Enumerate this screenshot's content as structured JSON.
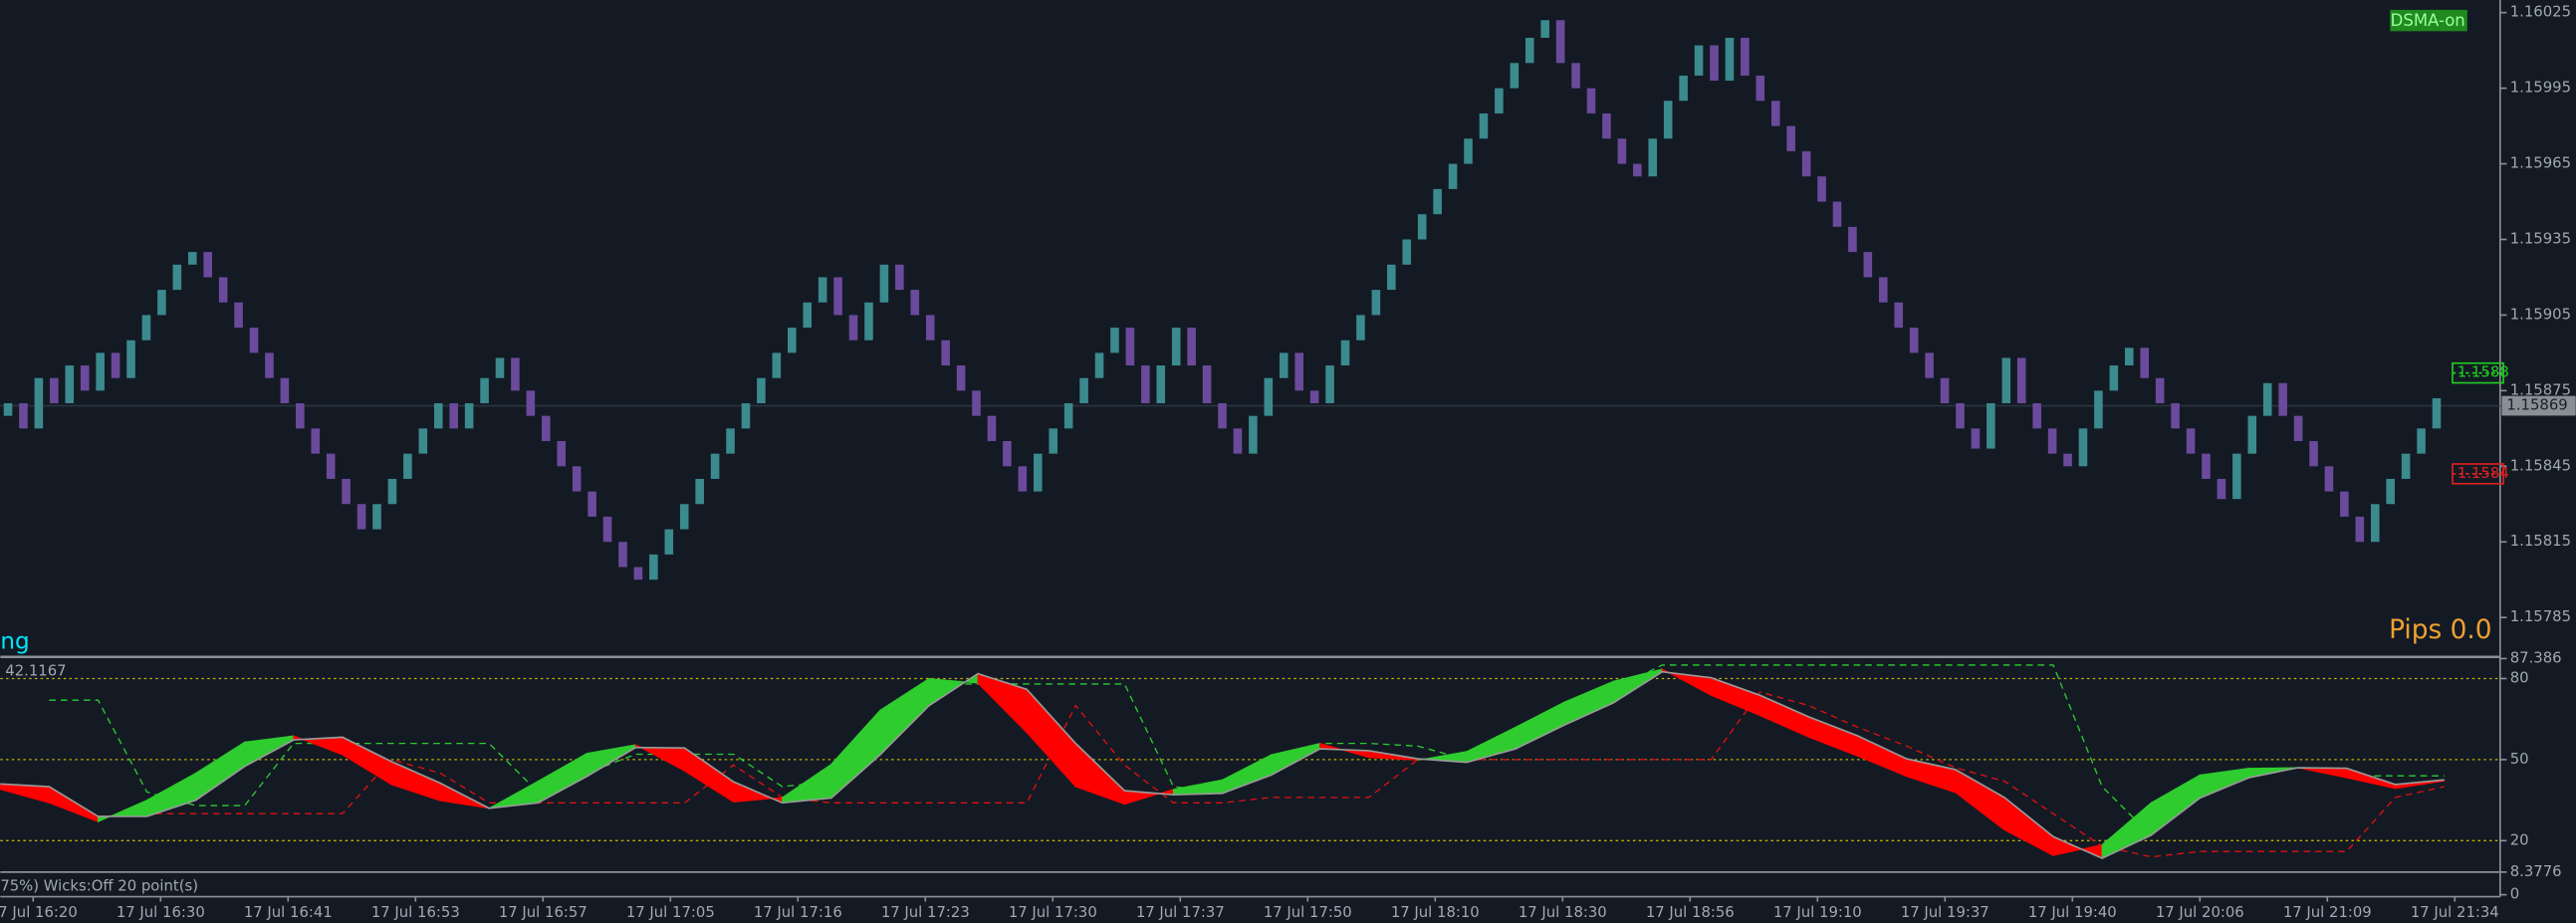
{
  "chart_data": [
    {
      "type": "renko",
      "title": "ng",
      "badge": "DSMA-on",
      "pips": "Pips 0.0",
      "up_color": "#3b8a8e",
      "down_color": "#6b4a9c",
      "values": [
        1.15865,
        1.1587,
        1.1586,
        1.1588,
        1.1587,
        1.15885,
        1.15875,
        1.1589,
        1.1588,
        1.15895,
        1.15905,
        1.15915,
        1.15925,
        1.1593,
        1.1592,
        1.1591,
        1.159,
        1.1589,
        1.1588,
        1.1587,
        1.1586,
        1.1585,
        1.1584,
        1.1583,
        1.1582,
        1.1583,
        1.1584,
        1.1585,
        1.1586,
        1.1587,
        1.1586,
        1.1587,
        1.1588,
        1.15888,
        1.15875,
        1.15865,
        1.15855,
        1.15845,
        1.15835,
        1.15825,
        1.15815,
        1.15805,
        1.158,
        1.1581,
        1.1582,
        1.1583,
        1.1584,
        1.1585,
        1.1586,
        1.1587,
        1.1588,
        1.1589,
        1.159,
        1.1591,
        1.1592,
        1.15905,
        1.15895,
        1.1591,
        1.15925,
        1.15915,
        1.15905,
        1.15895,
        1.15885,
        1.15875,
        1.15865,
        1.15855,
        1.15845,
        1.15835,
        1.1585,
        1.1586,
        1.1587,
        1.1588,
        1.1589,
        1.159,
        1.15885,
        1.1587,
        1.15885,
        1.159,
        1.15885,
        1.1587,
        1.1586,
        1.1585,
        1.15865,
        1.1588,
        1.1589,
        1.15875,
        1.1587,
        1.15885,
        1.15895,
        1.15905,
        1.15915,
        1.15925,
        1.15935,
        1.15945,
        1.15955,
        1.15965,
        1.15975,
        1.15985,
        1.15995,
        1.16005,
        1.16015,
        1.16022,
        1.16005,
        1.15995,
        1.15985,
        1.15975,
        1.15965,
        1.1596,
        1.15975,
        1.1599,
        1.16,
        1.16012,
        1.15998,
        1.16015,
        1.16,
        1.1599,
        1.1598,
        1.1597,
        1.1596,
        1.1595,
        1.1594,
        1.1593,
        1.1592,
        1.1591,
        1.159,
        1.1589,
        1.1588,
        1.1587,
        1.1586,
        1.15852,
        1.1587,
        1.15888,
        1.1587,
        1.1586,
        1.1585,
        1.15845,
        1.1586,
        1.15875,
        1.15885,
        1.15892,
        1.1588,
        1.1587,
        1.1586,
        1.1585,
        1.1584,
        1.15832,
        1.1585,
        1.15865,
        1.15878,
        1.15865,
        1.15855,
        1.15845,
        1.15835,
        1.15825,
        1.15815,
        1.1583,
        1.1584,
        1.1585,
        1.1586,
        1.15872
      ],
      "ylim": [
        1.1577,
        1.1603
      ],
      "yticks": [
        1.15785,
        1.15815,
        1.15845,
        1.15875,
        1.15905,
        1.15935,
        1.15965,
        1.15995,
        1.16025
      ],
      "current_price": 1.15869,
      "price_markers": [
        {
          "value": 1.15882,
          "label": "1.1588",
          "color": "#22cc22"
        },
        {
          "value": 1.15842,
          "label": "1.1584",
          "color": "#e02020"
        }
      ],
      "time_labels": [
        "17 Jul 16:20",
        "17 Jul 16:30",
        "17 Jul 16:41",
        "17 Jul 16:53",
        "17 Jul 16:57",
        "17 Jul 17:05",
        "17 Jul 17:16",
        "17 Jul 17:23",
        "17 Jul 17:30",
        "17 Jul 17:37",
        "17 Jul 17:50",
        "17 Jul 18:10",
        "17 Jul 18:30",
        "17 Jul 18:56",
        "17 Jul 19:10",
        "17 Jul 19:37",
        "17 Jul 19:40",
        "17 Jul 20:06",
        "17 Jul 21:09",
        "17 Jul 21:34"
      ]
    },
    {
      "type": "ribbon",
      "current_label": "42.1167",
      "status": "75%) Wicks:Off 20 point(s)",
      "down_color": "#ff0000",
      "level_color": "#c8b400",
      "series": [
        {
          "color": "#2ecc2e",
          "values": [
            39,
            34,
            27,
            35,
            45,
            56.5,
            58.8,
            51.8,
            40.8,
            34.8,
            32,
            42,
            52.3,
            55.5,
            45.8,
            34.3,
            36,
            48.3,
            68.3,
            80,
            78.3,
            60,
            40,
            33.5,
            39,
            42.5,
            51.8,
            56,
            50.8,
            49.8,
            53,
            62,
            71.3,
            79,
            83.5,
            73.8,
            66.3,
            58.3,
            51.3,
            43.8,
            37.8,
            24,
            14.5,
            18.5,
            34,
            44.3,
            46.8,
            47,
            43.3,
            39.3,
            42.1167
          ]
        },
        {
          "color": "#9a9a9a",
          "values": [
            41,
            40,
            29,
            29,
            35,
            47.5,
            57.3,
            58.3,
            49.3,
            41.3,
            32,
            34,
            43.8,
            54.5,
            54.3,
            41.8,
            34,
            35.8,
            51.8,
            70,
            81.8,
            76,
            56,
            38.5,
            37,
            37.5,
            44.3,
            54,
            53.3,
            50.3,
            49,
            54,
            62.8,
            71,
            82.5,
            80.3,
            73.8,
            65.8,
            58.8,
            50.3,
            46.3,
            36,
            21.5,
            13.5,
            22,
            35.8,
            43.3,
            47,
            46.8,
            40.8,
            42.5
          ]
        },
        {
          "color": "#2ecc2e",
          "dash": true,
          "values": [
            null,
            72,
            72,
            38,
            33,
            33,
            56,
            56,
            56,
            56,
            56,
            38,
            45,
            52,
            52,
            52,
            40,
            42,
            60,
            78,
            78,
            78,
            78,
            78,
            40,
            38,
            48,
            56,
            56,
            55,
            50,
            58,
            67,
            76,
            85,
            85,
            85,
            85,
            85,
            85,
            85,
            85,
            85,
            40,
            22,
            38,
            45,
            47,
            44,
            44,
            44
          ]
        },
        {
          "color": "#e01010",
          "dash": true,
          "values": [
            null,
            null,
            29,
            30,
            30,
            30,
            30,
            30,
            50,
            45,
            34,
            34,
            34,
            34,
            34,
            48,
            36,
            34,
            34,
            34,
            34,
            34,
            70,
            48,
            34,
            34,
            36,
            36,
            36,
            50,
            50,
            50,
            50,
            50,
            50,
            50,
            75,
            70,
            62,
            55,
            47,
            42,
            30,
            18,
            14,
            16,
            16,
            16,
            16,
            36,
            40
          ]
        }
      ],
      "ylim": [
        8.3776,
        87.386
      ],
      "yticks": [
        0,
        8.3776,
        20,
        50,
        80,
        87.386
      ],
      "levels": [
        20,
        50,
        80
      ]
    }
  ]
}
